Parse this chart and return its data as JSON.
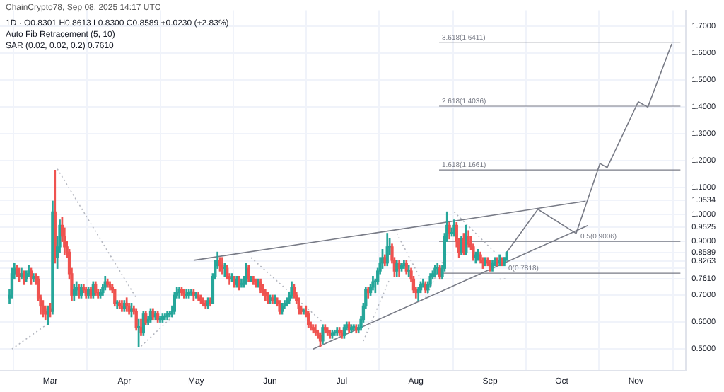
{
  "chart_data": {
    "type": "candlestick",
    "title": "1D · O0.8301 H0.8613 L0.8300 C0.8589 +0.0230 (+2.83%)",
    "annotations": [
      "ChainCrypto78, Sep 08, 2025 14:17 UTC",
      "Auto Fib Retracement (5, 10)",
      "SAR (0.02, 0.02, 0.2) 0.7610"
    ],
    "x": [
      "2025-02-12",
      "2025-02-13",
      "2025-02-14",
      "2025-02-15",
      "2025-02-16",
      "2025-02-17",
      "2025-02-18",
      "2025-02-19",
      "2025-02-20",
      "2025-02-21",
      "2025-02-22",
      "2025-02-23",
      "2025-02-24",
      "2025-02-25",
      "2025-02-26",
      "2025-02-27",
      "2025-02-28",
      "2025-03-01",
      "2025-03-02",
      "2025-03-03",
      "2025-03-04",
      "2025-03-05",
      "2025-03-06",
      "2025-03-07",
      "2025-03-08",
      "2025-03-09",
      "2025-03-10",
      "2025-03-11",
      "2025-03-12",
      "2025-03-13",
      "2025-03-14",
      "2025-03-15",
      "2025-03-16",
      "2025-03-17",
      "2025-03-18",
      "2025-03-19",
      "2025-03-20",
      "2025-03-21",
      "2025-03-22",
      "2025-03-23",
      "2025-03-24",
      "2025-03-25",
      "2025-03-26",
      "2025-03-27",
      "2025-03-28",
      "2025-03-29",
      "2025-03-30",
      "2025-03-31",
      "2025-04-01",
      "2025-04-02",
      "2025-04-03",
      "2025-04-04",
      "2025-04-05",
      "2025-04-06",
      "2025-04-07",
      "2025-04-08",
      "2025-04-09",
      "2025-04-10",
      "2025-04-11",
      "2025-04-12",
      "2025-04-13",
      "2025-04-14",
      "2025-04-15",
      "2025-04-16",
      "2025-04-17",
      "2025-04-18",
      "2025-04-19",
      "2025-04-20",
      "2025-04-21",
      "2025-04-22",
      "2025-04-23",
      "2025-04-24",
      "2025-04-25",
      "2025-04-26",
      "2025-04-27",
      "2025-04-28",
      "2025-04-29",
      "2025-04-30",
      "2025-05-01",
      "2025-05-02",
      "2025-05-03",
      "2025-05-04",
      "2025-05-05",
      "2025-05-06",
      "2025-05-07",
      "2025-05-08",
      "2025-05-09",
      "2025-05-10",
      "2025-05-11",
      "2025-05-12",
      "2025-05-13",
      "2025-05-14",
      "2025-05-15",
      "2025-05-16",
      "2025-05-17",
      "2025-05-18",
      "2025-05-19",
      "2025-05-20",
      "2025-05-21",
      "2025-05-22",
      "2025-05-23",
      "2025-05-24",
      "2025-05-25",
      "2025-05-26",
      "2025-05-27",
      "2025-05-28",
      "2025-05-29",
      "2025-05-30",
      "2025-05-31",
      "2025-06-01",
      "2025-06-02",
      "2025-06-03",
      "2025-06-04",
      "2025-06-05",
      "2025-06-06",
      "2025-06-07",
      "2025-06-08",
      "2025-06-09",
      "2025-06-10",
      "2025-06-11",
      "2025-06-12",
      "2025-06-13",
      "2025-06-14",
      "2025-06-15",
      "2025-06-16",
      "2025-06-17",
      "2025-06-18",
      "2025-06-19",
      "2025-06-20",
      "2025-06-21",
      "2025-06-22",
      "2025-06-23",
      "2025-06-24",
      "2025-06-25",
      "2025-06-26",
      "2025-06-27",
      "2025-06-28",
      "2025-06-29",
      "2025-06-30",
      "2025-07-01",
      "2025-07-02",
      "2025-07-03",
      "2025-07-04",
      "2025-07-05",
      "2025-07-06",
      "2025-07-07",
      "2025-07-08",
      "2025-07-09",
      "2025-07-10",
      "2025-07-11",
      "2025-07-12",
      "2025-07-13",
      "2025-07-14",
      "2025-07-15",
      "2025-07-16",
      "2025-07-17",
      "2025-07-18",
      "2025-07-19",
      "2025-07-20",
      "2025-07-21",
      "2025-07-22",
      "2025-07-23",
      "2025-07-24",
      "2025-07-25",
      "2025-07-26",
      "2025-07-27",
      "2025-07-28",
      "2025-07-29",
      "2025-07-30",
      "2025-07-31",
      "2025-08-01",
      "2025-08-02",
      "2025-08-03",
      "2025-08-04",
      "2025-08-05",
      "2025-08-06",
      "2025-08-07",
      "2025-08-08",
      "2025-08-09",
      "2025-08-10",
      "2025-08-11",
      "2025-08-12",
      "2025-08-13",
      "2025-08-14",
      "2025-08-15",
      "2025-08-16",
      "2025-08-17",
      "2025-08-18",
      "2025-08-19",
      "2025-08-20",
      "2025-08-21",
      "2025-08-22",
      "2025-08-23",
      "2025-08-24",
      "2025-08-25",
      "2025-08-26",
      "2025-08-27",
      "2025-08-28",
      "2025-08-29",
      "2025-08-30",
      "2025-08-31",
      "2025-09-01",
      "2025-09-02",
      "2025-09-03",
      "2025-09-04",
      "2025-09-05",
      "2025-09-06",
      "2025-09-07",
      "2025-09-08"
    ],
    "ohlc": [
      [
        0.69,
        0.72,
        0.67,
        0.7
      ],
      [
        0.7,
        0.8,
        0.69,
        0.78
      ],
      [
        0.78,
        0.82,
        0.76,
        0.8
      ],
      [
        0.8,
        0.81,
        0.77,
        0.78
      ],
      [
        0.78,
        0.8,
        0.75,
        0.77
      ],
      [
        0.77,
        0.8,
        0.76,
        0.78
      ],
      [
        0.78,
        0.79,
        0.74,
        0.76
      ],
      [
        0.76,
        0.79,
        0.75,
        0.78
      ],
      [
        0.78,
        0.81,
        0.77,
        0.79
      ],
      [
        0.79,
        0.8,
        0.74,
        0.76
      ],
      [
        0.76,
        0.78,
        0.75,
        0.77
      ],
      [
        0.77,
        0.78,
        0.74,
        0.76
      ],
      [
        0.76,
        0.77,
        0.68,
        0.69
      ],
      [
        0.69,
        0.7,
        0.63,
        0.66
      ],
      [
        0.66,
        0.68,
        0.62,
        0.64
      ],
      [
        0.64,
        0.66,
        0.61,
        0.63
      ],
      [
        0.63,
        0.66,
        0.59,
        0.65
      ],
      [
        0.65,
        0.67,
        0.62,
        0.64
      ],
      [
        0.64,
        1.05,
        0.63,
        1.01
      ],
      [
        1.01,
        1.165,
        0.82,
        0.84
      ],
      [
        0.84,
        0.92,
        0.8,
        0.88
      ],
      [
        0.88,
        0.98,
        0.86,
        0.96
      ],
      [
        0.96,
        0.99,
        0.9,
        0.92
      ],
      [
        0.92,
        0.95,
        0.85,
        0.88
      ],
      [
        0.88,
        0.9,
        0.84,
        0.86
      ],
      [
        0.86,
        0.87,
        0.76,
        0.78
      ],
      [
        0.78,
        0.8,
        0.68,
        0.7
      ],
      [
        0.7,
        0.74,
        0.68,
        0.72
      ],
      [
        0.72,
        0.75,
        0.7,
        0.73
      ],
      [
        0.73,
        0.74,
        0.69,
        0.7
      ],
      [
        0.7,
        0.74,
        0.69,
        0.73
      ],
      [
        0.73,
        0.74,
        0.71,
        0.72
      ],
      [
        0.72,
        0.73,
        0.69,
        0.7
      ],
      [
        0.7,
        0.73,
        0.69,
        0.72
      ],
      [
        0.72,
        0.73,
        0.69,
        0.7
      ],
      [
        0.7,
        0.75,
        0.69,
        0.74
      ],
      [
        0.74,
        0.75,
        0.7,
        0.71
      ],
      [
        0.71,
        0.72,
        0.69,
        0.7
      ],
      [
        0.7,
        0.72,
        0.69,
        0.71
      ],
      [
        0.71,
        0.74,
        0.7,
        0.73
      ],
      [
        0.73,
        0.77,
        0.72,
        0.75
      ],
      [
        0.75,
        0.76,
        0.73,
        0.74
      ],
      [
        0.74,
        0.75,
        0.72,
        0.73
      ],
      [
        0.73,
        0.74,
        0.71,
        0.72
      ],
      [
        0.72,
        0.72,
        0.66,
        0.67
      ],
      [
        0.67,
        0.68,
        0.65,
        0.67
      ],
      [
        0.67,
        0.68,
        0.65,
        0.66
      ],
      [
        0.66,
        0.68,
        0.64,
        0.65
      ],
      [
        0.65,
        0.68,
        0.64,
        0.67
      ],
      [
        0.67,
        0.69,
        0.64,
        0.66
      ],
      [
        0.66,
        0.67,
        0.63,
        0.64
      ],
      [
        0.64,
        0.67,
        0.62,
        0.65
      ],
      [
        0.65,
        0.66,
        0.63,
        0.64
      ],
      [
        0.64,
        0.65,
        0.57,
        0.58
      ],
      [
        0.58,
        0.61,
        0.51,
        0.58
      ],
      [
        0.58,
        0.61,
        0.55,
        0.56
      ],
      [
        0.56,
        0.64,
        0.55,
        0.63
      ],
      [
        0.63,
        0.64,
        0.59,
        0.6
      ],
      [
        0.6,
        0.62,
        0.59,
        0.61
      ],
      [
        0.61,
        0.65,
        0.6,
        0.64
      ],
      [
        0.64,
        0.65,
        0.61,
        0.62
      ],
      [
        0.62,
        0.64,
        0.61,
        0.63
      ],
      [
        0.63,
        0.64,
        0.6,
        0.61
      ],
      [
        0.61,
        0.62,
        0.6,
        0.61
      ],
      [
        0.61,
        0.63,
        0.6,
        0.62
      ],
      [
        0.62,
        0.63,
        0.61,
        0.62
      ],
      [
        0.62,
        0.64,
        0.61,
        0.63
      ],
      [
        0.63,
        0.64,
        0.62,
        0.63
      ],
      [
        0.63,
        0.66,
        0.62,
        0.64
      ],
      [
        0.64,
        0.71,
        0.63,
        0.7
      ],
      [
        0.7,
        0.73,
        0.69,
        0.71
      ],
      [
        0.71,
        0.73,
        0.69,
        0.72
      ],
      [
        0.72,
        0.73,
        0.7,
        0.71
      ],
      [
        0.71,
        0.72,
        0.69,
        0.7
      ],
      [
        0.7,
        0.72,
        0.69,
        0.7
      ],
      [
        0.7,
        0.72,
        0.69,
        0.71
      ],
      [
        0.71,
        0.72,
        0.7,
        0.71
      ],
      [
        0.71,
        0.72,
        0.68,
        0.7
      ],
      [
        0.7,
        0.71,
        0.69,
        0.7
      ],
      [
        0.7,
        0.71,
        0.68,
        0.69
      ],
      [
        0.69,
        0.7,
        0.67,
        0.68
      ],
      [
        0.68,
        0.69,
        0.66,
        0.67
      ],
      [
        0.67,
        0.68,
        0.65,
        0.66
      ],
      [
        0.66,
        0.69,
        0.65,
        0.68
      ],
      [
        0.68,
        0.69,
        0.66,
        0.67
      ],
      [
        0.67,
        0.78,
        0.67,
        0.77
      ],
      [
        0.77,
        0.83,
        0.76,
        0.81
      ],
      [
        0.81,
        0.86,
        0.8,
        0.83
      ],
      [
        0.83,
        0.84,
        0.79,
        0.81
      ],
      [
        0.81,
        0.84,
        0.78,
        0.8
      ],
      [
        0.8,
        0.82,
        0.77,
        0.8
      ],
      [
        0.8,
        0.81,
        0.76,
        0.77
      ],
      [
        0.77,
        0.78,
        0.74,
        0.76
      ],
      [
        0.76,
        0.78,
        0.75,
        0.76
      ],
      [
        0.76,
        0.77,
        0.73,
        0.74
      ],
      [
        0.74,
        0.77,
        0.73,
        0.76
      ],
      [
        0.76,
        0.77,
        0.72,
        0.74
      ],
      [
        0.74,
        0.76,
        0.73,
        0.74
      ],
      [
        0.74,
        0.77,
        0.73,
        0.75
      ],
      [
        0.75,
        0.82,
        0.74,
        0.8
      ],
      [
        0.8,
        0.81,
        0.75,
        0.76
      ],
      [
        0.76,
        0.77,
        0.75,
        0.76
      ],
      [
        0.76,
        0.77,
        0.74,
        0.75
      ],
      [
        0.75,
        0.76,
        0.73,
        0.74
      ],
      [
        0.74,
        0.76,
        0.73,
        0.75
      ],
      [
        0.75,
        0.76,
        0.71,
        0.72
      ],
      [
        0.72,
        0.74,
        0.7,
        0.71
      ],
      [
        0.71,
        0.72,
        0.68,
        0.7
      ],
      [
        0.7,
        0.71,
        0.67,
        0.68
      ],
      [
        0.68,
        0.7,
        0.67,
        0.69
      ],
      [
        0.69,
        0.7,
        0.67,
        0.68
      ],
      [
        0.68,
        0.7,
        0.67,
        0.68
      ],
      [
        0.68,
        0.69,
        0.66,
        0.67
      ],
      [
        0.67,
        0.68,
        0.63,
        0.64
      ],
      [
        0.64,
        0.67,
        0.63,
        0.66
      ],
      [
        0.66,
        0.68,
        0.65,
        0.67
      ],
      [
        0.67,
        0.69,
        0.66,
        0.68
      ],
      [
        0.68,
        0.71,
        0.67,
        0.7
      ],
      [
        0.7,
        0.75,
        0.69,
        0.73
      ],
      [
        0.73,
        0.74,
        0.69,
        0.7
      ],
      [
        0.7,
        0.71,
        0.67,
        0.68
      ],
      [
        0.68,
        0.69,
        0.63,
        0.65
      ],
      [
        0.65,
        0.66,
        0.63,
        0.64
      ],
      [
        0.64,
        0.65,
        0.63,
        0.64
      ],
      [
        0.64,
        0.66,
        0.62,
        0.63
      ],
      [
        0.63,
        0.64,
        0.58,
        0.59
      ],
      [
        0.59,
        0.6,
        0.57,
        0.58
      ],
      [
        0.58,
        0.59,
        0.56,
        0.57
      ],
      [
        0.57,
        0.59,
        0.55,
        0.56
      ],
      [
        0.56,
        0.57,
        0.54,
        0.55
      ],
      [
        0.55,
        0.56,
        0.51,
        0.53
      ],
      [
        0.53,
        0.59,
        0.52,
        0.58
      ],
      [
        0.58,
        0.59,
        0.56,
        0.57
      ],
      [
        0.57,
        0.58,
        0.55,
        0.56
      ],
      [
        0.56,
        0.57,
        0.54,
        0.55
      ],
      [
        0.55,
        0.57,
        0.54,
        0.56
      ],
      [
        0.56,
        0.57,
        0.55,
        0.56
      ],
      [
        0.56,
        0.58,
        0.55,
        0.57
      ],
      [
        0.57,
        0.58,
        0.55,
        0.56
      ],
      [
        0.56,
        0.57,
        0.54,
        0.55
      ],
      [
        0.55,
        0.59,
        0.54,
        0.58
      ],
      [
        0.58,
        0.6,
        0.57,
        0.59
      ],
      [
        0.59,
        0.6,
        0.56,
        0.57
      ],
      [
        0.57,
        0.59,
        0.56,
        0.58
      ],
      [
        0.58,
        0.59,
        0.57,
        0.58
      ],
      [
        0.58,
        0.59,
        0.56,
        0.57
      ],
      [
        0.57,
        0.59,
        0.56,
        0.58
      ],
      [
        0.58,
        0.62,
        0.57,
        0.61
      ],
      [
        0.61,
        0.67,
        0.6,
        0.66
      ],
      [
        0.66,
        0.73,
        0.65,
        0.72
      ],
      [
        0.72,
        0.73,
        0.69,
        0.71
      ],
      [
        0.71,
        0.74,
        0.7,
        0.73
      ],
      [
        0.73,
        0.77,
        0.72,
        0.75
      ],
      [
        0.75,
        0.76,
        0.71,
        0.75
      ],
      [
        0.75,
        0.8,
        0.74,
        0.79
      ],
      [
        0.79,
        0.84,
        0.78,
        0.82
      ],
      [
        0.82,
        0.87,
        0.8,
        0.84
      ],
      [
        0.84,
        0.85,
        0.81,
        0.82
      ],
      [
        0.82,
        0.93,
        0.81,
        0.88
      ],
      [
        0.88,
        0.91,
        0.85,
        0.88
      ],
      [
        0.88,
        0.89,
        0.82,
        0.83
      ],
      [
        0.83,
        0.84,
        0.77,
        0.79
      ],
      [
        0.79,
        0.83,
        0.77,
        0.82
      ],
      [
        0.82,
        0.83,
        0.77,
        0.8
      ],
      [
        0.8,
        0.82,
        0.79,
        0.81
      ],
      [
        0.81,
        0.83,
        0.8,
        0.82
      ],
      [
        0.82,
        0.83,
        0.78,
        0.79
      ],
      [
        0.79,
        0.81,
        0.77,
        0.79
      ],
      [
        0.79,
        0.8,
        0.75,
        0.76
      ],
      [
        0.76,
        0.77,
        0.71,
        0.72
      ],
      [
        0.72,
        0.73,
        0.69,
        0.71
      ],
      [
        0.71,
        0.73,
        0.68,
        0.72
      ],
      [
        0.72,
        0.75,
        0.71,
        0.74
      ],
      [
        0.74,
        0.76,
        0.73,
        0.74
      ],
      [
        0.74,
        0.75,
        0.71,
        0.72
      ],
      [
        0.72,
        0.75,
        0.71,
        0.74
      ],
      [
        0.74,
        0.78,
        0.73,
        0.77
      ],
      [
        0.77,
        0.79,
        0.76,
        0.78
      ],
      [
        0.78,
        0.81,
        0.77,
        0.8
      ],
      [
        0.8,
        0.82,
        0.78,
        0.8
      ],
      [
        0.8,
        0.81,
        0.76,
        0.77
      ],
      [
        0.77,
        0.81,
        0.76,
        0.8
      ],
      [
        0.8,
        0.93,
        0.79,
        0.92
      ],
      [
        0.92,
        1.01,
        0.9,
        0.96
      ],
      [
        0.96,
        0.97,
        0.91,
        0.93
      ],
      [
        0.93,
        0.95,
        0.92,
        0.93
      ],
      [
        0.93,
        0.98,
        0.92,
        0.96
      ],
      [
        0.96,
        0.97,
        0.88,
        0.9
      ],
      [
        0.9,
        0.91,
        0.84,
        0.86
      ],
      [
        0.86,
        0.92,
        0.85,
        0.91
      ],
      [
        0.91,
        0.93,
        0.85,
        0.86
      ],
      [
        0.86,
        0.96,
        0.85,
        0.92
      ],
      [
        0.92,
        0.94,
        0.88,
        0.89
      ],
      [
        0.89,
        0.92,
        0.87,
        0.88
      ],
      [
        0.88,
        0.89,
        0.83,
        0.84
      ],
      [
        0.84,
        0.86,
        0.82,
        0.85
      ],
      [
        0.85,
        0.87,
        0.83,
        0.85
      ],
      [
        0.85,
        0.86,
        0.82,
        0.83
      ],
      [
        0.83,
        0.84,
        0.8,
        0.82
      ],
      [
        0.82,
        0.84,
        0.81,
        0.83
      ],
      [
        0.83,
        0.84,
        0.81,
        0.82
      ],
      [
        0.82,
        0.83,
        0.79,
        0.8
      ],
      [
        0.8,
        0.83,
        0.79,
        0.82
      ],
      [
        0.82,
        0.84,
        0.81,
        0.83
      ],
      [
        0.83,
        0.84,
        0.81,
        0.82
      ],
      [
        0.82,
        0.85,
        0.81,
        0.83
      ],
      [
        0.83,
        0.84,
        0.81,
        0.82
      ],
      [
        0.82,
        0.84,
        0.81,
        0.84
      ],
      [
        0.8301,
        0.8613,
        0.83,
        0.8589
      ]
    ],
    "series": [
      {
        "type": "line",
        "color": "#787b86",
        "x": [
          "2025-04-30",
          "2025-10-11"
        ],
        "values": [
          0.83,
          1.05
        ]
      },
      {
        "type": "line",
        "color": "#787b86",
        "x": [
          "2025-06-19",
          "2025-10-12"
        ],
        "values": [
          0.5,
          0.96
        ]
      },
      {
        "type": "line",
        "color": "#787b86",
        "x": [
          "2025-09-08",
          "2025-09-21",
          "2025-10-07",
          "2025-10-17",
          "2025-10-20",
          "2025-11-02",
          "2025-11-06",
          "2025-11-16"
        ],
        "values": [
          0.86,
          1.02,
          0.93,
          1.19,
          1.175,
          1.42,
          1.4,
          1.635
        ]
      },
      {
        "type": "line",
        "color": "#b2b5be",
        "line_style": "dotted",
        "x": [
          "2025-02-13",
          "2025-03-01",
          "2025-03-02",
          "2025-03-04",
          "2025-04-06",
          "2025-04-07",
          "2025-04-08",
          "2025-04-21",
          "2025-04-22",
          "2025-05-24",
          "2025-06-23",
          "2025-06-24",
          "2025-07-10",
          "2025-07-21",
          "2025-07-22",
          "2025-07-24",
          "2025-08-03",
          "2025-08-04",
          "2025-08-05",
          "2025-08-14",
          "2025-08-15",
          "2025-08-17",
          "2025-09-03",
          "2025-09-04",
          "2025-09-05",
          "2025-09-08"
        ],
        "values": [
          0.5,
          0.6,
          null,
          1.17,
          0.69,
          null,
          0.51,
          0.62,
          null,
          0.84,
          0.6,
          null,
          0.53,
          0.76,
          null,
          0.93,
          0.76,
          null,
          0.69,
          0.86,
          null,
          1.01,
          0.86,
          null,
          0.76,
          0.761
        ]
      }
    ],
    "ref_lines": [
      {
        "axis": "y",
        "value": 0.7818,
        "label": "0(0.7818)",
        "color": "#787b86"
      },
      {
        "axis": "y",
        "value": 0.9006,
        "label": "0.5(0.9006)",
        "color": "#787b86"
      },
      {
        "axis": "y",
        "value": 1.1661,
        "label": "1.618(1.1661)",
        "color": "#787b86"
      },
      {
        "axis": "y",
        "value": 1.4036,
        "label": "2.618(1.4036)",
        "color": "#787b86"
      },
      {
        "axis": "y",
        "value": 1.6411,
        "label": "3.618(1.6411)",
        "color": "#787b86"
      }
    ],
    "xlim": [
      "2025-02-08",
      "2025-11-22"
    ],
    "xticks": [
      {
        "value": "2025-03-01",
        "label": "Mar"
      },
      {
        "value": "2025-04-01",
        "label": "Apr"
      },
      {
        "value": "2025-05-01",
        "label": "May"
      },
      {
        "value": "2025-06-01",
        "label": "Jun"
      },
      {
        "value": "2025-07-01",
        "label": "Jul"
      },
      {
        "value": "2025-08-01",
        "label": "Aug"
      },
      {
        "value": "2025-09-01",
        "label": "Sep"
      },
      {
        "value": "2025-10-01",
        "label": "Oct"
      },
      {
        "value": "2025-11-01",
        "label": "Nov"
      }
    ],
    "ylim": [
      0.42,
      1.76
    ],
    "yticks": [
      {
        "value": 0.5,
        "label": "0.5000"
      },
      {
        "value": 0.6,
        "label": "0.6000"
      },
      {
        "value": 0.7,
        "label": "0.7000"
      },
      {
        "value": 0.761,
        "label": "0.7610"
      },
      {
        "value": 0.8,
        "label": null
      },
      {
        "value": 0.8263,
        "label": "0.8263"
      },
      {
        "value": 0.8589,
        "label": "0.8589"
      },
      {
        "value": 0.9,
        "label": "0.9000"
      },
      {
        "value": 0.9525,
        "label": "0.9525"
      },
      {
        "value": 1.0,
        "label": "1.0000"
      },
      {
        "value": 1.0534,
        "label": "1.0534"
      },
      {
        "value": 1.1,
        "label": "1.1000"
      },
      {
        "value": 1.2,
        "label": "1.2000"
      },
      {
        "value": 1.3,
        "label": "1.3000"
      },
      {
        "value": 1.4,
        "label": "1.4000"
      },
      {
        "value": 1.5,
        "label": "1.5000"
      },
      {
        "value": 1.6,
        "label": "1.6000"
      },
      {
        "value": 1.7,
        "label": "1.7000"
      }
    ],
    "grid": true,
    "legend": false
  }
}
